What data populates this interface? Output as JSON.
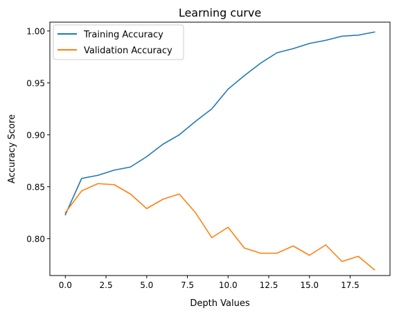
{
  "chart_data": {
    "type": "line",
    "title": "Learning curve",
    "xlabel": "Depth Values",
    "ylabel": "Accuracy Score",
    "x": [
      0,
      1,
      2,
      3,
      4,
      5,
      6,
      7,
      8,
      9,
      10,
      11,
      12,
      13,
      14,
      15,
      16,
      17,
      18,
      19
    ],
    "xlim": [
      -0.95,
      19.95
    ],
    "ylim": [
      0.7645,
      1.0085
    ],
    "xticks": [
      0.0,
      2.5,
      5.0,
      7.5,
      10.0,
      12.5,
      15.0,
      17.5
    ],
    "xtick_labels": [
      "0.0",
      "2.5",
      "5.0",
      "7.5",
      "10.0",
      "12.5",
      "15.0",
      "17.5"
    ],
    "yticks": [
      0.8,
      0.85,
      0.9,
      0.95,
      1.0
    ],
    "ytick_labels": [
      "0.80",
      "0.85",
      "0.90",
      "0.95",
      "1.00"
    ],
    "grid": false,
    "legend_position": "upper-left",
    "series": [
      {
        "name": "Training Accuracy",
        "color": "#1f77b4",
        "values": [
          0.823,
          0.858,
          0.861,
          0.866,
          0.869,
          0.879,
          0.891,
          0.9,
          0.913,
          0.925,
          0.944,
          0.957,
          0.969,
          0.979,
          0.983,
          0.988,
          0.991,
          0.995,
          0.996,
          0.999
        ]
      },
      {
        "name": "Validation Accuracy",
        "color": "#ff7f0e",
        "values": [
          0.825,
          0.846,
          0.853,
          0.852,
          0.843,
          0.829,
          0.838,
          0.843,
          0.825,
          0.801,
          0.811,
          0.791,
          0.786,
          0.786,
          0.793,
          0.784,
          0.794,
          0.778,
          0.783,
          0.77
        ]
      }
    ]
  }
}
